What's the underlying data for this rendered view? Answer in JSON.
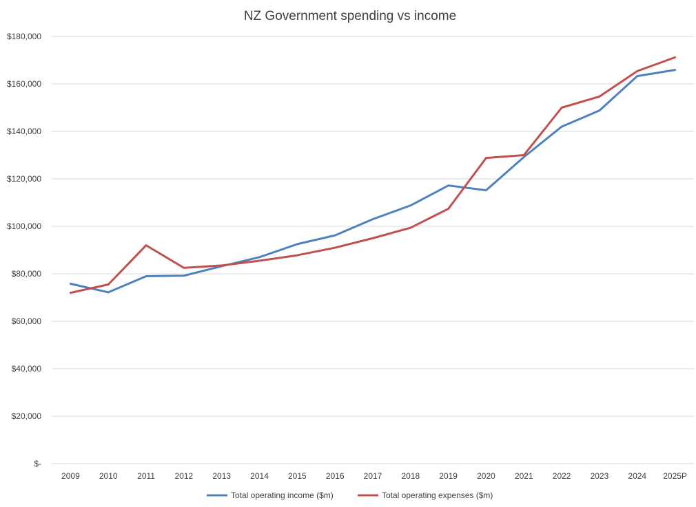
{
  "chart_data": {
    "type": "line",
    "title": "NZ Government spending vs income",
    "xlabel": "",
    "ylabel": "",
    "categories": [
      "2009",
      "2010",
      "2011",
      "2012",
      "2013",
      "2014",
      "2015",
      "2016",
      "2017",
      "2018",
      "2019",
      "2020",
      "2021",
      "2022",
      "2023",
      "2024",
      "2025P"
    ],
    "ylim": [
      0,
      180000
    ],
    "yticks": [
      0,
      20000,
      40000,
      60000,
      80000,
      100000,
      120000,
      140000,
      160000,
      180000
    ],
    "ytick_labels": [
      "$-",
      "$20,000",
      "$40,000",
      "$60,000",
      "$80,000",
      "$100,000",
      "$120,000",
      "$140,000",
      "$160,000",
      "$180,000"
    ],
    "grid": true,
    "legend_position": "bottom",
    "series": [
      {
        "name": "Total operating income ($m)",
        "color": "#4f81bd",
        "values": [
          75800,
          72200,
          79000,
          79200,
          83200,
          87000,
          92500,
          96200,
          103000,
          108800,
          117200,
          115200,
          129200,
          142000,
          148800,
          163300,
          165900
        ]
      },
      {
        "name": "Total operating expenses ($m)",
        "color": "#c0504d",
        "values": [
          72000,
          75500,
          92000,
          82500,
          83500,
          85500,
          87800,
          91000,
          95000,
          99400,
          107400,
          128800,
          130000,
          150000,
          154700,
          165400,
          171200
        ]
      }
    ]
  }
}
